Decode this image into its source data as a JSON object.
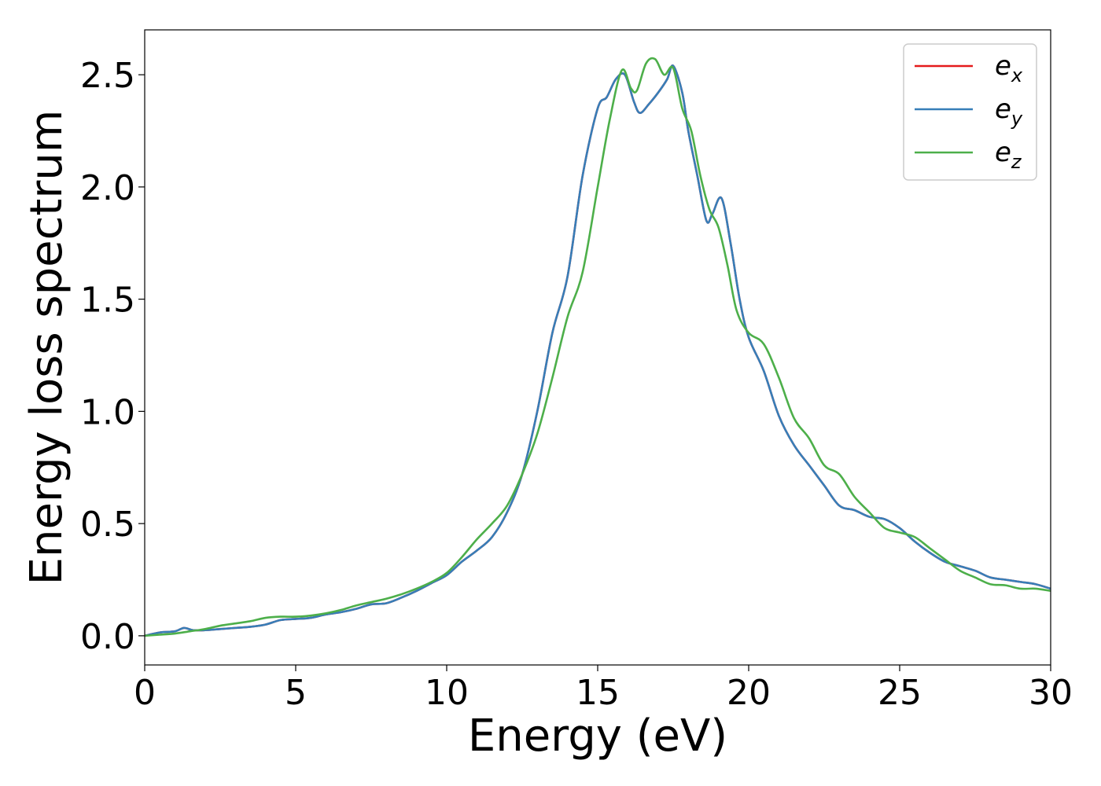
{
  "chart_data": {
    "type": "line",
    "xlabel": "Energy (eV)",
    "ylabel": "Energy loss spectrum",
    "xlim": [
      0,
      30
    ],
    "ylim": [
      -0.13,
      2.7
    ],
    "xticks": [
      0,
      5,
      10,
      15,
      20,
      25,
      30
    ],
    "xtick_labels": [
      "0",
      "5",
      "10",
      "15",
      "20",
      "25",
      "30"
    ],
    "yticks": [
      0.0,
      0.5,
      1.0,
      1.5,
      2.0,
      2.5
    ],
    "ytick_labels": [
      "0.0",
      "0.5",
      "1.0",
      "1.5",
      "2.0",
      "2.5"
    ],
    "grid": false,
    "legend_position": "top-right",
    "series": [
      {
        "name": "e",
        "subscript": "x",
        "color": "#e41a1c",
        "x": [
          0,
          0.5,
          1,
          1.3,
          1.6,
          2,
          2.5,
          3,
          3.5,
          4,
          4.5,
          5,
          5.5,
          6,
          6.5,
          7,
          7.5,
          8,
          8.5,
          9,
          9.5,
          10,
          10.5,
          11,
          11.5,
          12,
          12.5,
          13,
          13.5,
          14,
          14.5,
          15,
          15.3,
          15.6,
          15.9,
          16.2,
          16.4,
          16.7,
          17,
          17.3,
          17.5,
          17.8,
          18,
          18.3,
          18.6,
          18.8,
          19.1,
          19.4,
          19.7,
          20,
          20.5,
          21,
          21.5,
          22,
          22.5,
          23,
          23.5,
          24,
          24.5,
          25,
          25.5,
          26,
          26.5,
          27,
          27.5,
          28,
          28.5,
          29,
          29.5,
          30
        ],
        "y": [
          0.0,
          0.015,
          0.02,
          0.035,
          0.025,
          0.025,
          0.03,
          0.035,
          0.04,
          0.05,
          0.07,
          0.075,
          0.08,
          0.095,
          0.105,
          0.12,
          0.14,
          0.145,
          0.17,
          0.2,
          0.235,
          0.27,
          0.33,
          0.38,
          0.44,
          0.55,
          0.72,
          1.0,
          1.35,
          1.6,
          2.05,
          2.35,
          2.4,
          2.48,
          2.5,
          2.38,
          2.33,
          2.37,
          2.42,
          2.48,
          2.54,
          2.42,
          2.25,
          2.05,
          1.85,
          1.88,
          1.95,
          1.75,
          1.5,
          1.33,
          1.18,
          0.98,
          0.85,
          0.76,
          0.67,
          0.58,
          0.56,
          0.53,
          0.52,
          0.48,
          0.42,
          0.37,
          0.33,
          0.31,
          0.29,
          0.26,
          0.25,
          0.24,
          0.23,
          0.21
        ]
      },
      {
        "name": "e",
        "subscript": "y",
        "color": "#377eb8",
        "x": [
          0,
          0.5,
          1,
          1.3,
          1.6,
          2,
          2.5,
          3,
          3.5,
          4,
          4.5,
          5,
          5.5,
          6,
          6.5,
          7,
          7.5,
          8,
          8.5,
          9,
          9.5,
          10,
          10.5,
          11,
          11.5,
          12,
          12.5,
          13,
          13.5,
          14,
          14.5,
          15,
          15.3,
          15.6,
          15.9,
          16.2,
          16.4,
          16.7,
          17,
          17.3,
          17.5,
          17.8,
          18,
          18.3,
          18.6,
          18.8,
          19.1,
          19.4,
          19.7,
          20,
          20.5,
          21,
          21.5,
          22,
          22.5,
          23,
          23.5,
          24,
          24.5,
          25,
          25.5,
          26,
          26.5,
          27,
          27.5,
          28,
          28.5,
          29,
          29.5,
          30
        ],
        "y": [
          0.0,
          0.015,
          0.02,
          0.035,
          0.025,
          0.025,
          0.03,
          0.035,
          0.04,
          0.05,
          0.07,
          0.075,
          0.08,
          0.095,
          0.105,
          0.12,
          0.14,
          0.145,
          0.17,
          0.2,
          0.235,
          0.27,
          0.33,
          0.38,
          0.44,
          0.55,
          0.72,
          1.0,
          1.35,
          1.6,
          2.05,
          2.35,
          2.4,
          2.48,
          2.5,
          2.38,
          2.33,
          2.37,
          2.42,
          2.48,
          2.54,
          2.42,
          2.25,
          2.05,
          1.85,
          1.88,
          1.95,
          1.75,
          1.5,
          1.33,
          1.18,
          0.98,
          0.85,
          0.76,
          0.67,
          0.58,
          0.56,
          0.53,
          0.52,
          0.48,
          0.42,
          0.37,
          0.33,
          0.31,
          0.29,
          0.26,
          0.25,
          0.24,
          0.23,
          0.21
        ]
      },
      {
        "name": "e",
        "subscript": "z",
        "color": "#4daf4a",
        "x": [
          0,
          0.5,
          1,
          1.5,
          2,
          2.5,
          3,
          3.5,
          4,
          4.5,
          5,
          5.5,
          6,
          6.5,
          7,
          7.5,
          8,
          8.5,
          9,
          9.5,
          10,
          10.5,
          11,
          11.5,
          12,
          12.5,
          13,
          13.5,
          14,
          14.5,
          15,
          15.4,
          15.8,
          16.1,
          16.3,
          16.6,
          16.9,
          17.2,
          17.5,
          17.8,
          18.1,
          18.4,
          18.7,
          19,
          19.3,
          19.6,
          20,
          20.5,
          21,
          21.5,
          22,
          22.5,
          23,
          23.5,
          24,
          24.5,
          25,
          25.5,
          26,
          26.5,
          27,
          27.5,
          28,
          28.5,
          29,
          29.5,
          30
        ],
        "y": [
          0.0,
          0.005,
          0.01,
          0.02,
          0.03,
          0.045,
          0.055,
          0.065,
          0.08,
          0.085,
          0.085,
          0.09,
          0.1,
          0.115,
          0.135,
          0.15,
          0.165,
          0.185,
          0.21,
          0.24,
          0.28,
          0.35,
          0.43,
          0.5,
          0.58,
          0.72,
          0.9,
          1.15,
          1.42,
          1.62,
          2.0,
          2.3,
          2.52,
          2.44,
          2.43,
          2.55,
          2.57,
          2.5,
          2.53,
          2.35,
          2.25,
          2.05,
          1.9,
          1.82,
          1.65,
          1.45,
          1.35,
          1.3,
          1.15,
          0.97,
          0.88,
          0.76,
          0.72,
          0.62,
          0.55,
          0.48,
          0.46,
          0.44,
          0.39,
          0.34,
          0.29,
          0.26,
          0.23,
          0.225,
          0.21,
          0.21,
          0.2
        ]
      }
    ]
  }
}
